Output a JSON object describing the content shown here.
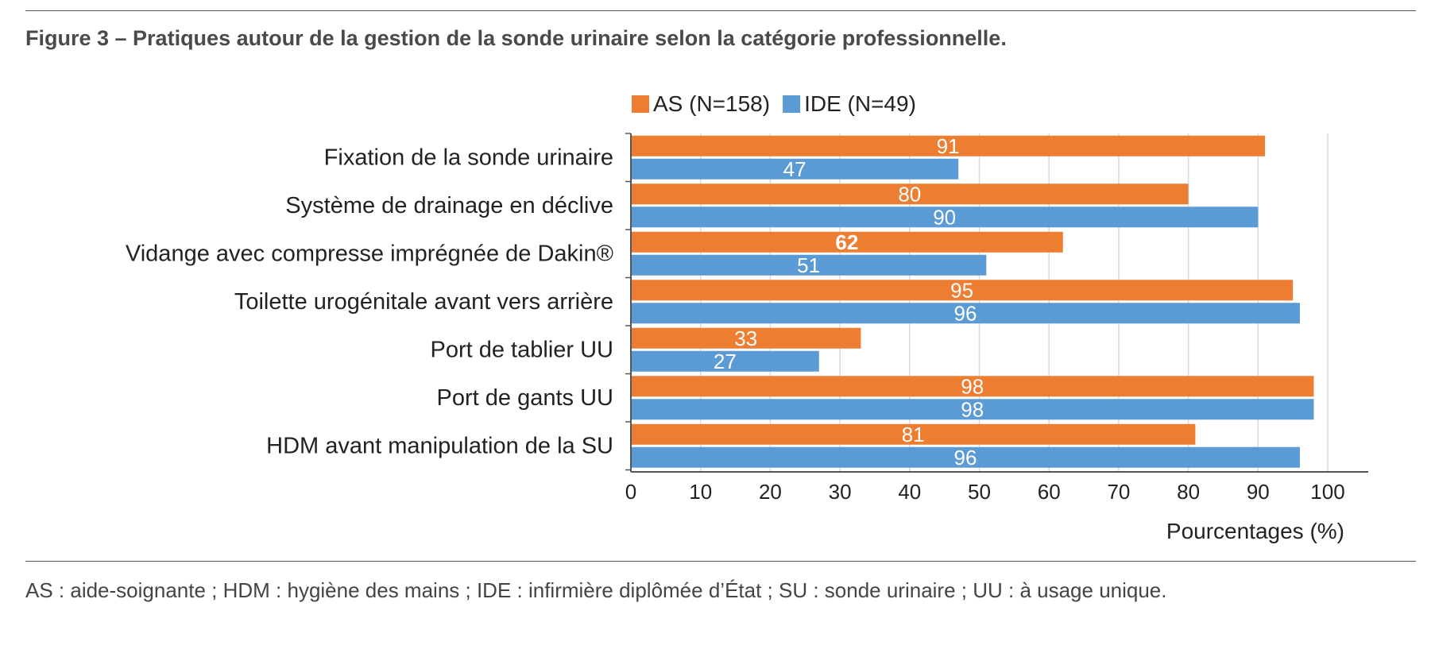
{
  "title": "Figure 3 – Pratiques autour de la gestion de la sonde urinaire selon la catégorie professionnelle.",
  "footnote": "AS : aide-soignante ; HDM : hygiène des mains ; IDE : infirmière diplômée d’État ; SU : sonde urinaire ; UU : à usage unique.",
  "colors": {
    "as": "#ed7d31",
    "ide": "#5b9bd5",
    "grid": "#d9d9d9",
    "axis": "#555555"
  },
  "chart_data": {
    "type": "bar",
    "orientation": "horizontal",
    "categories": [
      "Fixation de la sonde urinaire",
      "Système de drainage en déclive",
      "Vidange avec compresse imprégnée de Dakin®",
      "Toilette urogénitale avant vers arrière",
      "Port de tablier UU",
      "Port de gants UU",
      "HDM avant manipulation de la SU"
    ],
    "series": [
      {
        "name": "AS (N=158)",
        "color": "#ed7d31",
        "values": [
          91,
          80,
          62,
          95,
          33,
          98,
          81
        ],
        "bold_labels": [
          2
        ]
      },
      {
        "name": "IDE (N=49)",
        "color": "#5b9bd5",
        "values": [
          47,
          90,
          51,
          96,
          27,
          98,
          96
        ],
        "bold_labels": []
      }
    ],
    "xlabel": "Pourcentages (%)",
    "xlim": [
      0,
      100
    ],
    "xticks": [
      0,
      10,
      20,
      30,
      40,
      50,
      60,
      70,
      80,
      90,
      100
    ],
    "legend_position": "top",
    "grid": true
  }
}
